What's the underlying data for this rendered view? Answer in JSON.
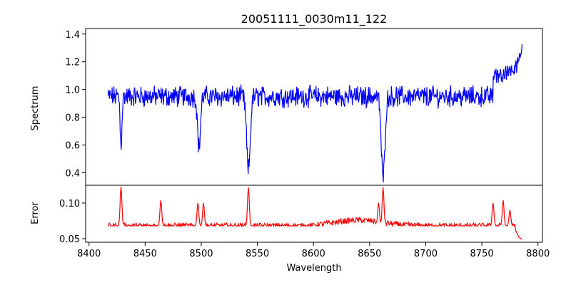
{
  "chart_data": [
    {
      "type": "line",
      "title": "20051111_0030m11_122",
      "ylabel": "Spectrum",
      "xlabel": "",
      "xlim": [
        8397,
        8804
      ],
      "ylim": [
        0.31,
        1.44
      ],
      "yticks": [
        0.4,
        0.6,
        0.8,
        1.0,
        1.2,
        1.4
      ],
      "ytick_labels": [
        "0.4",
        "0.6",
        "0.8",
        "1.0",
        "1.2",
        "1.4"
      ],
      "color": "#0000ff",
      "wave_range": [
        8417,
        8786
      ],
      "continuum": 0.95,
      "noise_amplitude": 0.06,
      "absorption_lines": [
        {
          "center": 8428.5,
          "depth": 0.35,
          "width": 0.8
        },
        {
          "center": 8498,
          "depth": 0.37,
          "width": 1.3
        },
        {
          "center": 8542,
          "depth": 0.53,
          "width": 1.6
        },
        {
          "center": 8662,
          "depth": 0.59,
          "width": 1.6
        }
      ],
      "red_end_rise": [
        {
          "x": 8760,
          "y": 1.15
        },
        {
          "x": 8780,
          "y": 1.2
        },
        {
          "x": 8783,
          "y": 1.31
        },
        {
          "x": 8786,
          "y": 1.38
        }
      ]
    },
    {
      "type": "line",
      "title": "",
      "ylabel": "Error",
      "xlabel": "Wavelength",
      "xlim": [
        8397,
        8804
      ],
      "ylim": [
        0.045,
        0.125
      ],
      "yticks": [
        0.05,
        0.1
      ],
      "ytick_labels": [
        "0.05",
        "0.10"
      ],
      "xticks": [
        8400,
        8450,
        8500,
        8550,
        8600,
        8650,
        8700,
        8750,
        8800
      ],
      "xtick_labels": [
        "8400",
        "8450",
        "8500",
        "8550",
        "8600",
        "8650",
        "8700",
        "8750",
        "8800"
      ],
      "color": "#ff0000",
      "wave_range": [
        8417,
        8786
      ],
      "baseline": 0.068,
      "noise_amplitude": 0.004,
      "peaks": [
        {
          "center": 8428.5,
          "height": 0.123
        },
        {
          "center": 8464,
          "height": 0.104
        },
        {
          "center": 8497,
          "height": 0.1
        },
        {
          "center": 8502,
          "height": 0.1
        },
        {
          "center": 8542,
          "height": 0.122
        },
        {
          "center": 8658,
          "height": 0.1
        },
        {
          "center": 8662,
          "height": 0.122
        },
        {
          "center": 8760,
          "height": 0.1
        },
        {
          "center": 8769,
          "height": 0.104
        },
        {
          "center": 8775,
          "height": 0.09
        }
      ],
      "tail": [
        {
          "x": 8780,
          "y": 0.062
        },
        {
          "x": 8783,
          "y": 0.052
        },
        {
          "x": 8786,
          "y": 0.049
        }
      ]
    }
  ]
}
